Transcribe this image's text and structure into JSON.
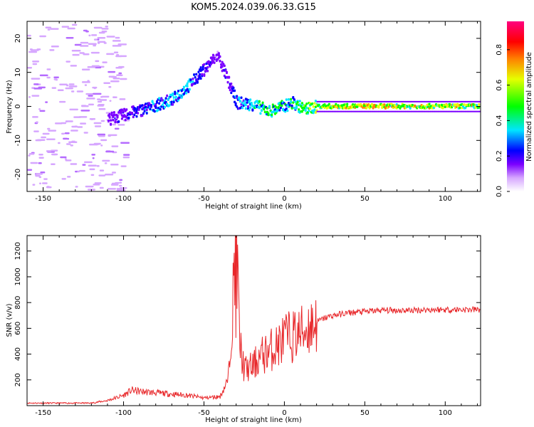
{
  "title": "KOM5.2024.039.06.33.G15",
  "chart_data": [
    {
      "type": "heatmap",
      "title": "",
      "xlabel": "Height of straight line (km)",
      "ylabel": "Frequency (Hz)",
      "xlim": [
        -160,
        122
      ],
      "ylim": [
        -25,
        25
      ],
      "x_ticks": [
        -150,
        -100,
        -50,
        0,
        50,
        100
      ],
      "y_ticks": [
        -20,
        -10,
        0,
        10,
        20
      ],
      "colorbar": {
        "label": "Normalized spectral amplitude",
        "range": [
          0,
          0.96
        ],
        "ticks": [
          "0.0",
          "0.2",
          "0.4",
          "0.6",
          "0.8"
        ],
        "colors": [
          "#ffffff",
          "#d6a6ff",
          "#7b00ff",
          "#0000ff",
          "#00e5ff",
          "#00ff00",
          "#e6ff00",
          "#ff8000",
          "#ff0000",
          "#ff0080"
        ]
      },
      "ridge": {
        "description_points": [
          {
            "x": -100,
            "y": -2.5,
            "amp": 0.15
          },
          {
            "x": -85,
            "y": -0.5,
            "amp": 0.2
          },
          {
            "x": -70,
            "y": 2,
            "amp": 0.25
          },
          {
            "x": -60,
            "y": 6,
            "amp": 0.25
          },
          {
            "x": -50,
            "y": 11,
            "amp": 0.15
          },
          {
            "x": -42,
            "y": 15,
            "amp": 0.1
          },
          {
            "x": -30,
            "y": 1,
            "amp": 0.2
          },
          {
            "x": -20,
            "y": 0.5,
            "amp": 0.3
          },
          {
            "x": -10,
            "y": -1.5,
            "amp": 0.35
          },
          {
            "x": 5,
            "y": 1,
            "amp": 0.35
          },
          {
            "x": 12,
            "y": -1,
            "amp": 0.4
          },
          {
            "x": 20,
            "y": 0,
            "amp": 0.5
          },
          {
            "x": 50,
            "y": 0,
            "amp": 0.6
          },
          {
            "x": 80,
            "y": 0,
            "amp": 0.55
          },
          {
            "x": 110,
            "y": 0,
            "amp": 0.55
          }
        ]
      }
    },
    {
      "type": "line",
      "title": "",
      "xlabel": "Height of straight line (km)",
      "ylabel": "SNR (v/v)",
      "xlim": [
        -160,
        122
      ],
      "ylim": [
        0,
        1320
      ],
      "x_ticks": [
        -150,
        -100,
        -50,
        0,
        50,
        100
      ],
      "y_ticks": [
        200,
        400,
        600,
        800,
        1000,
        1200
      ],
      "line_color": "#e8272a",
      "series": [
        {
          "x": [
            -160,
            -140,
            -120,
            -110,
            -100,
            -95,
            -90,
            -80,
            -70,
            -60,
            -50,
            -40,
            -35,
            -32,
            -30,
            -28,
            -25,
            -20,
            -15,
            -10,
            -5,
            0,
            5,
            10,
            15,
            20,
            25,
            30,
            40,
            50,
            60,
            70,
            80,
            90,
            100,
            110,
            122
          ],
          "values": [
            20,
            20,
            20,
            40,
            80,
            120,
            110,
            100,
            90,
            80,
            60,
            70,
            200,
            700,
            1310,
            500,
            280,
            300,
            380,
            420,
            460,
            520,
            540,
            560,
            610,
            650,
            680,
            700,
            720,
            730,
            740,
            740,
            740,
            745,
            745,
            745,
            745
          ]
        }
      ]
    }
  ]
}
